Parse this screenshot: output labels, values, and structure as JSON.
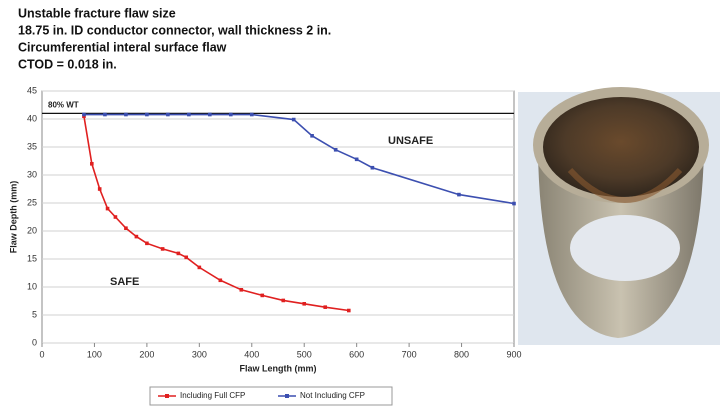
{
  "chart_data": {
    "type": "line",
    "title_lines": [
      "Unstable fracture flaw size",
      "18.75 in. ID conductor connector, wall thickness 2 in.",
      "Circumferential interal surface flaw",
      "CTOD = 0.018 in."
    ],
    "x_label": "Flaw Length (mm)",
    "y_label": "Flaw Depth (mm)",
    "xlim": [
      0,
      900
    ],
    "xticks": [
      0,
      100,
      200,
      300,
      400,
      500,
      600,
      700,
      800,
      900
    ],
    "ylim": [
      0,
      45
    ],
    "yticks": [
      0,
      5,
      10,
      15,
      20,
      25,
      30,
      35,
      40,
      45
    ],
    "grid": true,
    "reference_line": {
      "value": 41,
      "label": "80% WT"
    },
    "annotations": [
      "UNSAFE",
      "SAFE"
    ],
    "series": [
      {
        "name": "Including Full CFP",
        "color": "#e02020",
        "x": [
          80,
          95,
          110,
          125,
          140,
          160,
          180,
          200,
          230,
          260,
          275,
          300,
          340,
          380,
          420,
          460,
          500,
          540,
          585
        ],
        "values": [
          40.5,
          32,
          27.5,
          24,
          22.5,
          20.5,
          19,
          17.8,
          16.8,
          16,
          15.3,
          13.5,
          11.2,
          9.5,
          8.5,
          7.6,
          7,
          6.4,
          5.8
        ]
      },
      {
        "name": "Not Including CFP",
        "color": "#3c4fb0",
        "x": [
          80,
          120,
          160,
          200,
          240,
          280,
          320,
          360,
          400,
          480,
          515,
          560,
          600,
          630,
          795,
          900
        ],
        "values": [
          40.8,
          40.8,
          40.8,
          40.8,
          40.8,
          40.8,
          40.8,
          40.8,
          40.8,
          39.9,
          37,
          34.5,
          32.8,
          31.3,
          26.5,
          24.9
        ]
      }
    ]
  }
}
